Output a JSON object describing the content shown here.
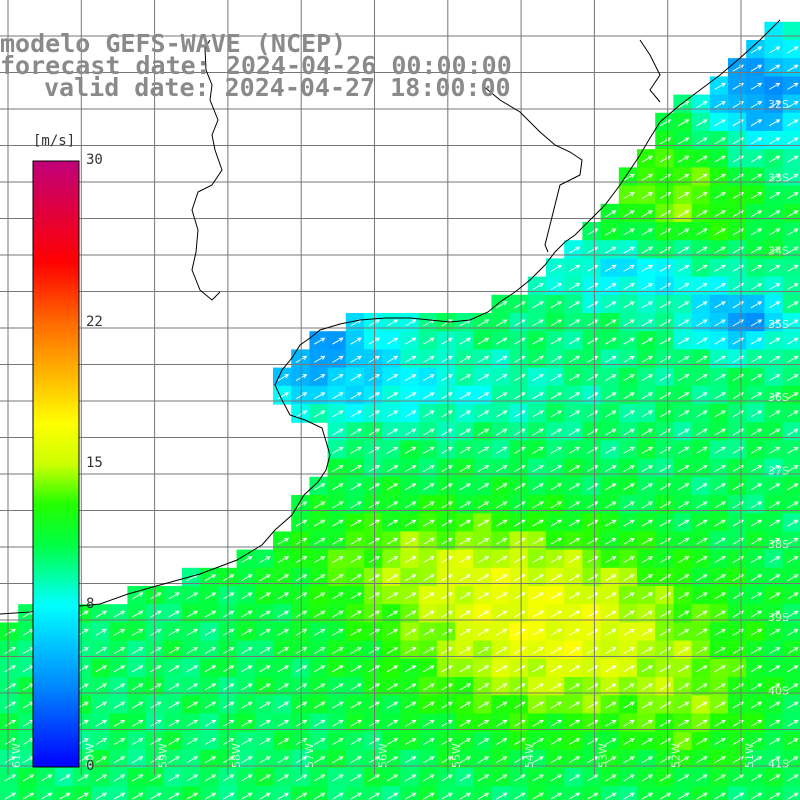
{
  "header": {
    "line1": "modelo GEFS-WAVE (NCEP)",
    "line2": "forecast date: 2024-04-26 00:00:00",
    "line3": "valid date: 2024-04-27 18:00:00"
  },
  "colorbar": {
    "unit": "[m/s]",
    "min": 0,
    "max": 30,
    "ticks": [
      {
        "value": 30,
        "label": "30"
      },
      {
        "value": 22,
        "label": "22"
      },
      {
        "value": 15,
        "label": "15"
      },
      {
        "value": 8,
        "label": "8"
      },
      {
        "value": 0,
        "label": "0"
      }
    ],
    "stops": [
      {
        "value": 0,
        "color": "#0000ff"
      },
      {
        "value": 4,
        "color": "#0088ff"
      },
      {
        "value": 8,
        "color": "#00ffff"
      },
      {
        "value": 11,
        "color": "#00ff44"
      },
      {
        "value": 13,
        "color": "#22ff00"
      },
      {
        "value": 15,
        "color": "#ccff00"
      },
      {
        "value": 17,
        "color": "#ffff00"
      },
      {
        "value": 20,
        "color": "#ffa500"
      },
      {
        "value": 22,
        "color": "#ff6a00"
      },
      {
        "value": 25,
        "color": "#ff0000"
      },
      {
        "value": 30,
        "color": "#c0007a"
      }
    ]
  },
  "map": {
    "lon_range": [
      -61,
      -50.25
    ],
    "lat_range": [
      -41.5,
      -30.5
    ],
    "wind_direction_deg": 60,
    "lat_labels": [
      "32S",
      "33S",
      "34S",
      "35S",
      "36S",
      "37S",
      "38S",
      "39S",
      "40S",
      "41S"
    ],
    "lon_labels": [
      "61W",
      "60W",
      "59W",
      "58W",
      "57W",
      "56W",
      "55W",
      "54W",
      "53W",
      "52W",
      "51W"
    ],
    "colors": {
      "land": "#ffffff",
      "grid": "#777777",
      "coast": "#000000",
      "arrow": "#ffffff"
    }
  }
}
